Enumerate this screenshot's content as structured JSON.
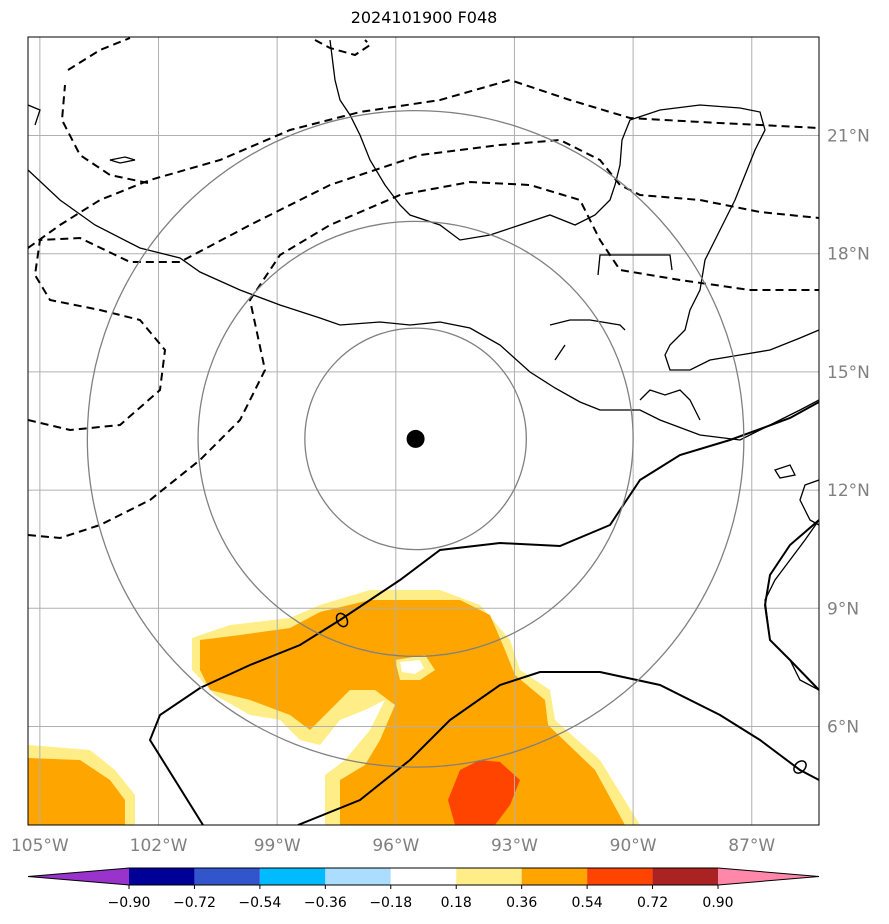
{
  "title": "2024101900 F048",
  "map": {
    "lon_labels": [
      "105°W",
      "102°W",
      "99°W",
      "96°W",
      "93°W",
      "90°W",
      "87°W"
    ],
    "lat_labels": [
      "21°N",
      "18°N",
      "15°N",
      "12°N",
      "9°N",
      "6°N"
    ],
    "extent": {
      "lon_min": -105.3,
      "lon_max": -85.3,
      "lat_min": 3.5,
      "lat_max": 23.5
    },
    "storm_center": {
      "lon": -95.5,
      "lat": 13.3
    },
    "range_rings_deg": [
      2.8,
      5.5,
      8.3
    ],
    "grid": true,
    "colors": {
      "grid": "#b0b0b0",
      "ring": "#808080",
      "coast": "#000000",
      "tick_label": "#808080"
    }
  },
  "colorbar": {
    "ticks": [
      "−0.90",
      "−0.72",
      "−0.54",
      "−0.36",
      "−0.18",
      "0.18",
      "0.36",
      "0.54",
      "0.72",
      "0.90"
    ],
    "colors": [
      "#9933cc",
      "#000099",
      "#3355cc",
      "#00bbff",
      "#aaddff",
      "#ffffff",
      "#ffee88",
      "#ffa500",
      "#ff4400",
      "#aa2222",
      "#ff88aa"
    ]
  }
}
